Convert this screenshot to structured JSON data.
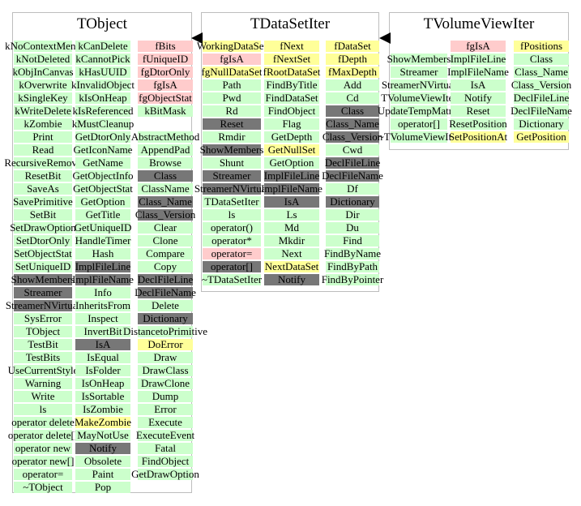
{
  "colors": {
    "green": "#ccffcc",
    "pink": "#ffcccc",
    "yellow": "#ffff99",
    "gray": "#777777",
    "gray_text": "#000000",
    "border": "#bdbdbd",
    "arrow": "#000000"
  },
  "classes": [
    {
      "name": "TObject",
      "columns": [
        {
          "items": [
            {
              "t": "kNoContextMenu",
              "c": "green"
            },
            {
              "t": "kNotDeleted",
              "c": "green"
            },
            {
              "t": "kObjInCanvas",
              "c": "green"
            },
            {
              "t": "kOverwrite",
              "c": "green"
            },
            {
              "t": "kSingleKey",
              "c": "green"
            },
            {
              "t": "kWriteDelete",
              "c": "green"
            },
            {
              "t": "kZombie",
              "c": "green"
            },
            {
              "t": "Print",
              "c": "green"
            },
            {
              "t": "Read",
              "c": "green"
            },
            {
              "t": "RecursiveRemove",
              "c": "green"
            },
            {
              "t": "ResetBit",
              "c": "green"
            },
            {
              "t": "SaveAs",
              "c": "green"
            },
            {
              "t": "SavePrimitive",
              "c": "green"
            },
            {
              "t": "SetBit",
              "c": "green"
            },
            {
              "t": "SetDrawOption",
              "c": "green"
            },
            {
              "t": "SetDtorOnly",
              "c": "green"
            },
            {
              "t": "SetObjectStat",
              "c": "green"
            },
            {
              "t": "SetUniqueID",
              "c": "green"
            },
            {
              "t": "ShowMembers",
              "c": "gray"
            },
            {
              "t": "Streamer",
              "c": "gray"
            },
            {
              "t": "StreamerNVirtual",
              "c": "gray"
            },
            {
              "t": "SysError",
              "c": "green"
            },
            {
              "t": "TObject",
              "c": "green"
            },
            {
              "t": "TestBit",
              "c": "green"
            },
            {
              "t": "TestBits",
              "c": "green"
            },
            {
              "t": "UseCurrentStyle",
              "c": "green"
            },
            {
              "t": "Warning",
              "c": "green"
            },
            {
              "t": "Write",
              "c": "green"
            },
            {
              "t": "ls",
              "c": "green"
            },
            {
              "t": "operator delete",
              "c": "green"
            },
            {
              "t": "operator delete[]",
              "c": "green"
            },
            {
              "t": "operator new",
              "c": "green"
            },
            {
              "t": "operator new[]",
              "c": "green"
            },
            {
              "t": "operator=",
              "c": "green"
            },
            {
              "t": "~TObject",
              "c": "green"
            }
          ]
        },
        {
          "items": [
            {
              "t": "kCanDelete",
              "c": "green"
            },
            {
              "t": "kCannotPick",
              "c": "green"
            },
            {
              "t": "kHasUUID",
              "c": "green"
            },
            {
              "t": "kInvalidObject",
              "c": "green"
            },
            {
              "t": "kIsOnHeap",
              "c": "green"
            },
            {
              "t": "kIsReferenced",
              "c": "green"
            },
            {
              "t": "kMustCleanup",
              "c": "green"
            },
            {
              "t": "GetDtorOnly",
              "c": "green"
            },
            {
              "t": "GetIconName",
              "c": "green"
            },
            {
              "t": "GetName",
              "c": "green"
            },
            {
              "t": "GetObjectInfo",
              "c": "green"
            },
            {
              "t": "GetObjectStat",
              "c": "green"
            },
            {
              "t": "GetOption",
              "c": "green"
            },
            {
              "t": "GetTitle",
              "c": "green"
            },
            {
              "t": "GetUniqueID",
              "c": "green"
            },
            {
              "t": "HandleTimer",
              "c": "green"
            },
            {
              "t": "Hash",
              "c": "green"
            },
            {
              "t": "ImplFileLine",
              "c": "gray"
            },
            {
              "t": "ImplFileName",
              "c": "gray"
            },
            {
              "t": "Info",
              "c": "green"
            },
            {
              "t": "InheritsFrom",
              "c": "green"
            },
            {
              "t": "Inspect",
              "c": "green"
            },
            {
              "t": "InvertBit",
              "c": "green"
            },
            {
              "t": "IsA",
              "c": "gray"
            },
            {
              "t": "IsEqual",
              "c": "green"
            },
            {
              "t": "IsFolder",
              "c": "green"
            },
            {
              "t": "IsOnHeap",
              "c": "green"
            },
            {
              "t": "IsSortable",
              "c": "green"
            },
            {
              "t": "IsZombie",
              "c": "green"
            },
            {
              "t": "MakeZombie",
              "c": "yellow"
            },
            {
              "t": "MayNotUse",
              "c": "green"
            },
            {
              "t": "Notify",
              "c": "gray"
            },
            {
              "t": "Obsolete",
              "c": "green"
            },
            {
              "t": "Paint",
              "c": "green"
            },
            {
              "t": "Pop",
              "c": "green"
            }
          ]
        },
        {
          "items": [
            {
              "t": "fBits",
              "c": "pink"
            },
            {
              "t": "fUniqueID",
              "c": "pink"
            },
            {
              "t": "fgDtorOnly",
              "c": "pink"
            },
            {
              "t": "fgIsA",
              "c": "pink"
            },
            {
              "t": "fgObjectStat",
              "c": "pink"
            },
            {
              "t": "kBitMask",
              "c": "green"
            },
            {
              "t": "",
              "c": "none"
            },
            {
              "t": "AbstractMethod",
              "c": "green"
            },
            {
              "t": "AppendPad",
              "c": "green"
            },
            {
              "t": "Browse",
              "c": "green"
            },
            {
              "t": "Class",
              "c": "gray"
            },
            {
              "t": "ClassName",
              "c": "green"
            },
            {
              "t": "Class_Name",
              "c": "gray"
            },
            {
              "t": "Class_Version",
              "c": "gray"
            },
            {
              "t": "Clear",
              "c": "green"
            },
            {
              "t": "Clone",
              "c": "green"
            },
            {
              "t": "Compare",
              "c": "green"
            },
            {
              "t": "Copy",
              "c": "green"
            },
            {
              "t": "DeclFileLine",
              "c": "gray"
            },
            {
              "t": "DeclFileName",
              "c": "gray"
            },
            {
              "t": "Delete",
              "c": "green"
            },
            {
              "t": "Dictionary",
              "c": "gray"
            },
            {
              "t": "DistancetoPrimitive",
              "c": "green"
            },
            {
              "t": "DoError",
              "c": "yellow"
            },
            {
              "t": "Draw",
              "c": "green"
            },
            {
              "t": "DrawClass",
              "c": "green"
            },
            {
              "t": "DrawClone",
              "c": "green"
            },
            {
              "t": "Dump",
              "c": "green"
            },
            {
              "t": "Error",
              "c": "green"
            },
            {
              "t": "Execute",
              "c": "green"
            },
            {
              "t": "ExecuteEvent",
              "c": "green"
            },
            {
              "t": "Fatal",
              "c": "green"
            },
            {
              "t": "FindObject",
              "c": "green"
            },
            {
              "t": "GetDrawOption",
              "c": "green"
            }
          ]
        }
      ]
    },
    {
      "name": "TDataSetIter",
      "columns": [
        {
          "items": [
            {
              "t": "WorkingDataSet",
              "c": "yellow"
            },
            {
              "t": "fgIsA",
              "c": "pink"
            },
            {
              "t": "fgNullDataSet",
              "c": "yellow"
            },
            {
              "t": "Path",
              "c": "green"
            },
            {
              "t": "Pwd",
              "c": "green"
            },
            {
              "t": "Rd",
              "c": "green"
            },
            {
              "t": "Reset",
              "c": "gray"
            },
            {
              "t": "Rmdir",
              "c": "green"
            },
            {
              "t": "ShowMembers",
              "c": "gray"
            },
            {
              "t": "Shunt",
              "c": "green"
            },
            {
              "t": "Streamer",
              "c": "gray"
            },
            {
              "t": "StreamerNVirtual",
              "c": "gray"
            },
            {
              "t": "TDataSetIter",
              "c": "green"
            },
            {
              "t": "ls",
              "c": "green"
            },
            {
              "t": "operator()",
              "c": "green"
            },
            {
              "t": "operator*",
              "c": "green"
            },
            {
              "t": "operator=",
              "c": "pink"
            },
            {
              "t": "operator[]",
              "c": "gray"
            },
            {
              "t": "~TDataSetIter",
              "c": "green"
            }
          ]
        },
        {
          "items": [
            {
              "t": "fNext",
              "c": "yellow"
            },
            {
              "t": "fNextSet",
              "c": "yellow"
            },
            {
              "t": "fRootDataSet",
              "c": "yellow"
            },
            {
              "t": "FindByTitle",
              "c": "green"
            },
            {
              "t": "FindDataSet",
              "c": "green"
            },
            {
              "t": "FindObject",
              "c": "green"
            },
            {
              "t": "Flag",
              "c": "green"
            },
            {
              "t": "GetDepth",
              "c": "green"
            },
            {
              "t": "GetNullSet",
              "c": "yellow"
            },
            {
              "t": "GetOption",
              "c": "green"
            },
            {
              "t": "ImplFileLine",
              "c": "gray"
            },
            {
              "t": "ImplFileName",
              "c": "gray"
            },
            {
              "t": "IsA",
              "c": "gray"
            },
            {
              "t": "Ls",
              "c": "green"
            },
            {
              "t": "Md",
              "c": "green"
            },
            {
              "t": "Mkdir",
              "c": "green"
            },
            {
              "t": "Next",
              "c": "green"
            },
            {
              "t": "NextDataSet",
              "c": "yellow"
            },
            {
              "t": "Notify",
              "c": "gray"
            }
          ]
        },
        {
          "items": [
            {
              "t": "fDataSet",
              "c": "yellow"
            },
            {
              "t": "fDepth",
              "c": "yellow"
            },
            {
              "t": "fMaxDepth",
              "c": "yellow"
            },
            {
              "t": "Add",
              "c": "green"
            },
            {
              "t": "Cd",
              "c": "green"
            },
            {
              "t": "Class",
              "c": "gray"
            },
            {
              "t": "Class_Name",
              "c": "gray"
            },
            {
              "t": "Class_Version",
              "c": "gray"
            },
            {
              "t": "Cwd",
              "c": "green"
            },
            {
              "t": "DeclFileLine",
              "c": "gray"
            },
            {
              "t": "DeclFileName",
              "c": "gray"
            },
            {
              "t": "Df",
              "c": "green"
            },
            {
              "t": "Dictionary",
              "c": "gray"
            },
            {
              "t": "Dir",
              "c": "green"
            },
            {
              "t": "Du",
              "c": "green"
            },
            {
              "t": "Find",
              "c": "green"
            },
            {
              "t": "FindByName",
              "c": "green"
            },
            {
              "t": "FindByPath",
              "c": "green"
            },
            {
              "t": "FindByPointer",
              "c": "green"
            }
          ]
        }
      ]
    },
    {
      "name": "TVolumeViewIter",
      "columns": [
        {
          "items": [
            {
              "t": "",
              "c": "none"
            },
            {
              "t": "ShowMembers",
              "c": "green"
            },
            {
              "t": "Streamer",
              "c": "green"
            },
            {
              "t": "StreamerNVirtual",
              "c": "green"
            },
            {
              "t": "TVolumeViewIter",
              "c": "green"
            },
            {
              "t": "UpdateTempMatrix",
              "c": "green"
            },
            {
              "t": "operator[]",
              "c": "green"
            },
            {
              "t": "~TVolumeViewIter",
              "c": "green"
            }
          ]
        },
        {
          "items": [
            {
              "t": "fgIsA",
              "c": "pink"
            },
            {
              "t": "ImplFileLine",
              "c": "green"
            },
            {
              "t": "ImplFileName",
              "c": "green"
            },
            {
              "t": "IsA",
              "c": "green"
            },
            {
              "t": "Notify",
              "c": "green"
            },
            {
              "t": "Reset",
              "c": "green"
            },
            {
              "t": "ResetPosition",
              "c": "green"
            },
            {
              "t": "SetPositionAt",
              "c": "yellow"
            }
          ]
        },
        {
          "items": [
            {
              "t": "fPositions",
              "c": "yellow"
            },
            {
              "t": "Class",
              "c": "green"
            },
            {
              "t": "Class_Name",
              "c": "green"
            },
            {
              "t": "Class_Version",
              "c": "green"
            },
            {
              "t": "DeclFileLine",
              "c": "green"
            },
            {
              "t": "DeclFileName",
              "c": "green"
            },
            {
              "t": "Dictionary",
              "c": "green"
            },
            {
              "t": "GetPosition",
              "c": "yellow"
            }
          ]
        }
      ]
    }
  ]
}
